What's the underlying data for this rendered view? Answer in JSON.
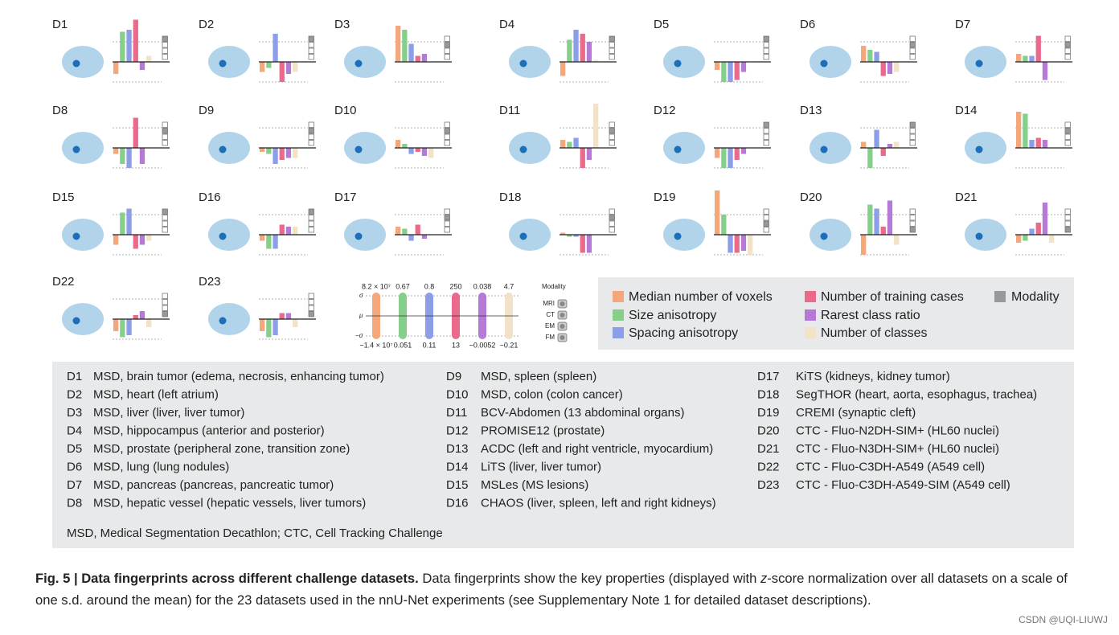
{
  "properties": [
    {
      "name": "Median number of voxels",
      "color": "#f4a77a"
    },
    {
      "name": "Size anisotropy",
      "color": "#86cf8b"
    },
    {
      "name": "Spacing anisotropy",
      "color": "#8c9ee8"
    },
    {
      "name": "Number of training cases",
      "color": "#ea6a8c"
    },
    {
      "name": "Rarest class ratio",
      "color": "#b57ad6"
    },
    {
      "name": "Number of classes",
      "color": "#f1e2c8"
    }
  ],
  "modality_legend": {
    "name": "Modality",
    "color": "#999999"
  },
  "key": {
    "sigma_labels": [
      "σ",
      "μ",
      "−σ"
    ],
    "top": [
      "8.2 × 10⁷",
      "0.67",
      "0.8",
      "250",
      "0.038",
      "4.7"
    ],
    "bottom": [
      "−1.4 × 10⁷",
      "0.051",
      "0.11",
      "13",
      "−0.0052",
      "−0.21"
    ],
    "modality_title": "Modality",
    "modalities": [
      "MRI",
      "CT",
      "EM",
      "FM"
    ]
  },
  "datasets": [
    {
      "id": "D1",
      "values": [
        -0.6,
        1.5,
        1.6,
        2.1,
        -0.4,
        0.3
      ],
      "modality": "MRI",
      "description": "MSD, brain tumor (edema, necrosis, enhancing tumor)"
    },
    {
      "id": "D2",
      "values": [
        -0.5,
        -0.3,
        1.4,
        -1.0,
        -0.6,
        -0.5
      ],
      "modality": "MRI",
      "description": "MSD, heart (left atrium)"
    },
    {
      "id": "D3",
      "values": [
        1.8,
        1.6,
        0.9,
        0.3,
        0.4,
        0.0
      ],
      "modality": "CT",
      "description": "MSD, liver (liver, liver tumor)"
    },
    {
      "id": "D4",
      "values": [
        -0.7,
        1.1,
        1.6,
        1.4,
        1.0,
        0.1
      ],
      "modality": "MRI",
      "description": "MSD, hippocampus (anterior and posterior)"
    },
    {
      "id": "D5",
      "values": [
        -0.4,
        -1.0,
        -1.0,
        -0.9,
        -0.5,
        0.0
      ],
      "modality": "MRI",
      "description": "MSD, prostate (peripheral zone, transition zone)"
    },
    {
      "id": "D6",
      "values": [
        0.8,
        0.6,
        0.5,
        -0.7,
        -0.6,
        -0.5
      ],
      "modality": "CT",
      "description": "MSD, lung (lung nodules)"
    },
    {
      "id": "D7",
      "values": [
        0.4,
        0.3,
        0.3,
        1.3,
        -0.9,
        0.0
      ],
      "modality": "CT",
      "description": "MSD, pancreas (pancreas, pancreatic tumor)"
    },
    {
      "id": "D8",
      "values": [
        -0.3,
        -0.8,
        -1.0,
        1.5,
        -0.8,
        0.0
      ],
      "modality": "CT",
      "description": "MSD, hepatic vessel (hepatic vessels, liver tumors)"
    },
    {
      "id": "D9",
      "values": [
        -0.2,
        -0.3,
        -0.8,
        -0.6,
        -0.5,
        -0.5
      ],
      "modality": "CT",
      "description": "MSD, spleen (spleen)"
    },
    {
      "id": "D10",
      "values": [
        0.4,
        0.2,
        -0.3,
        -0.2,
        -0.4,
        -0.5
      ],
      "modality": "CT",
      "description": "MSD, colon (colon cancer)"
    },
    {
      "id": "D11",
      "values": [
        0.4,
        0.3,
        0.5,
        -1.0,
        -0.6,
        2.2
      ],
      "modality": "CT",
      "description": "BCV-Abdomen (13 abdominal organs)"
    },
    {
      "id": "D12",
      "values": [
        -0.5,
        -1.0,
        -1.0,
        -0.6,
        -0.3,
        0.0
      ],
      "modality": "MRI",
      "description": "PROMISE12 (prostate)"
    },
    {
      "id": "D13",
      "values": [
        0.3,
        -1.0,
        0.9,
        -0.4,
        0.2,
        0.3
      ],
      "modality": "MRI",
      "description": "ACDC (left and right ventricle, myocardium)"
    },
    {
      "id": "D14",
      "values": [
        1.8,
        1.7,
        0.4,
        0.5,
        0.4,
        0.0
      ],
      "modality": "CT",
      "description": "LiTS (liver, liver tumor)"
    },
    {
      "id": "D15",
      "values": [
        -0.5,
        1.1,
        1.3,
        -0.7,
        -0.5,
        -0.3
      ],
      "modality": "MRI",
      "description": "MSLes (MS lesions)"
    },
    {
      "id": "D16",
      "values": [
        -0.3,
        -0.7,
        -0.7,
        0.5,
        0.4,
        0.4
      ],
      "modality": "MRI",
      "description": "CHAOS (liver, spleen, left and right kidneys)"
    },
    {
      "id": "D17",
      "values": [
        0.4,
        0.3,
        -0.3,
        0.5,
        -0.2,
        0.0
      ],
      "modality": "CT",
      "description": "KiTS (kidneys, kidney tumor)"
    },
    {
      "id": "D18",
      "values": [
        0.1,
        -0.1,
        -0.1,
        -0.9,
        -0.9,
        0.0
      ],
      "modality": "CT",
      "description": "SegTHOR (heart, aorta, esophagus, trachea)"
    },
    {
      "id": "D19",
      "values": [
        2.2,
        1.0,
        -0.9,
        -0.9,
        -0.8,
        -1.0
      ],
      "modality": "EM",
      "description": "CREMI (synaptic cleft)"
    },
    {
      "id": "D20",
      "values": [
        -1.0,
        1.5,
        1.3,
        0.4,
        1.7,
        -0.5
      ],
      "modality": "FM",
      "description": "CTC - Fluo-N2DH-SIM+ (HL60 nuclei)"
    },
    {
      "id": "D21",
      "values": [
        -0.4,
        -0.3,
        0.3,
        0.6,
        1.6,
        -0.4
      ],
      "modality": "FM",
      "description": "CTC - Fluo-N3DH-SIM+ (HL60 nuclei)"
    },
    {
      "id": "D22",
      "values": [
        -0.6,
        -0.9,
        -0.8,
        0.2,
        0.4,
        -0.4
      ],
      "modality": "FM",
      "description": "CTC - Fluo-C3DH-A549 (A549 cell)"
    },
    {
      "id": "D23",
      "values": [
        -0.6,
        -0.9,
        -0.8,
        0.3,
        0.3,
        -0.4
      ],
      "modality": "FM",
      "description": "CTC - Fluo-C3DH-A549-SIM (A549 cell)"
    }
  ],
  "footnote": "MSD, Medical Segmentation Decathlon; CTC, Cell Tracking Challenge",
  "caption": {
    "bold": "Fig. 5 | Data fingerprints across different challenge datasets.",
    "text1": " Data fingerprints show the key properties (displayed with ",
    "italic": "z",
    "text2": "-score normalization over all datasets on a scale of one s.d. around the mean) for the 23 datasets used in the nnU-Net experiments (see Supplementary Note 1 for detailed dataset descriptions)."
  },
  "watermark": "CSDN @UQI-LIUWJ"
}
